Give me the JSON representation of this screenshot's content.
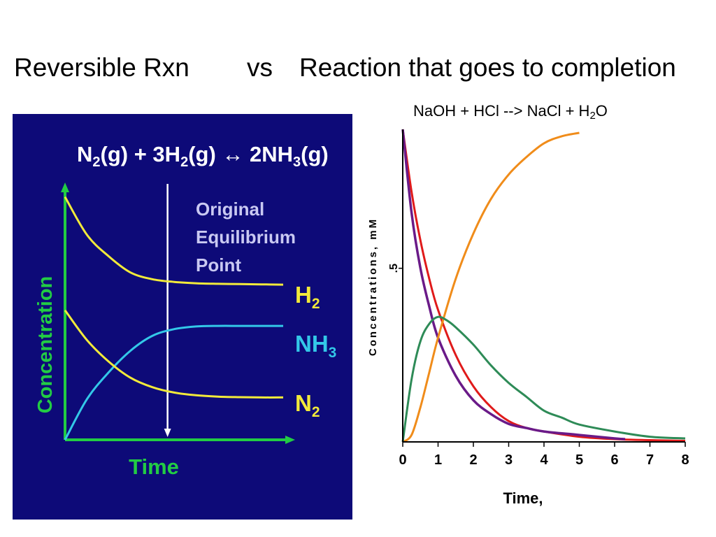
{
  "slide": {
    "title_left": "Reversible Rxn",
    "title_vs": "vs",
    "title_right": "Reaction that goes to completion"
  },
  "left_panel": {
    "equation_parts": [
      "N",
      "2",
      "(g)  +  3H",
      "2",
      "(g)  ↔  2NH",
      "3",
      "(g)"
    ],
    "colors": {
      "background": "#0d0a78",
      "h2": "#f2ea3a",
      "n2": "#f2ea3a",
      "nh3": "#33c8e8",
      "axes": "#22cc44",
      "marker": "#ffffff",
      "annotation": "#c9c9f2"
    }
  },
  "right_panel": {
    "equation_parts": [
      "NaOH + HCl -->  NaCl + H",
      "2",
      "O"
    ],
    "colors": {
      "red": "#e01a1a",
      "purple": "#6a1a88",
      "orange": "#f08c1a",
      "green": "#2e8b57"
    }
  },
  "chart_data": [
    {
      "type": "line",
      "title": "N2(g) + 3H2(g) ↔ 2NH3(g)",
      "xlabel": "Time",
      "ylabel": "Concentration",
      "xlim": [
        0,
        10
      ],
      "ylim": [
        0,
        10
      ],
      "grid": false,
      "annotation": [
        "Original",
        "Equilibrium",
        "Point"
      ],
      "marker_x": 4.7,
      "series": [
        {
          "name": "H2",
          "label_main": "H",
          "label_sub": "2",
          "x": [
            0,
            1,
            2,
            3,
            4,
            5,
            6,
            7,
            8,
            9,
            10
          ],
          "values": [
            9.0,
            7.6,
            6.8,
            6.2,
            5.95,
            5.85,
            5.8,
            5.78,
            5.77,
            5.76,
            5.75
          ]
        },
        {
          "name": "NH3",
          "label_main": "NH",
          "label_sub": "3",
          "x": [
            0,
            1,
            2,
            3,
            4,
            5,
            6,
            7,
            8,
            9,
            10
          ],
          "values": [
            0,
            1.5,
            2.5,
            3.3,
            3.85,
            4.1,
            4.2,
            4.22,
            4.22,
            4.22,
            4.22
          ]
        },
        {
          "name": "N2",
          "label_main": "N",
          "label_sub": "2",
          "x": [
            0,
            1,
            2,
            3,
            4,
            5,
            6,
            7,
            8,
            9,
            10
          ],
          "values": [
            4.8,
            3.7,
            2.9,
            2.3,
            1.95,
            1.75,
            1.65,
            1.6,
            1.58,
            1.57,
            1.57
          ]
        }
      ]
    },
    {
      "type": "line",
      "title": "NaOH + HCl -->  NaCl + H2O",
      "xlabel": "Time,",
      "ylabel": "Concentrations, mM",
      "xlim": [
        0,
        8
      ],
      "ylim": [
        0,
        0.9
      ],
      "xticks": [
        "0",
        "1",
        "2",
        "3",
        "4",
        "5",
        "6",
        "7",
        "8"
      ],
      "yticks": [
        ".5"
      ],
      "grid": false,
      "series": [
        {
          "name": "red",
          "x": [
            0,
            0.25,
            0.5,
            0.75,
            1,
            1.5,
            2,
            2.5,
            3,
            3.5,
            4,
            5,
            6,
            7,
            8
          ],
          "values": [
            0.9,
            0.72,
            0.58,
            0.47,
            0.38,
            0.25,
            0.16,
            0.1,
            0.06,
            0.04,
            0.03,
            0.015,
            0.008,
            0.005,
            0.003
          ]
        },
        {
          "name": "purple",
          "x": [
            0,
            0.25,
            0.5,
            0.75,
            1,
            1.5,
            2,
            2.5,
            3,
            3.5,
            4,
            5,
            6,
            6.3
          ],
          "values": [
            0.9,
            0.66,
            0.5,
            0.39,
            0.3,
            0.19,
            0.12,
            0.08,
            0.052,
            0.04,
            0.03,
            0.02,
            0.01,
            0.008
          ]
        },
        {
          "name": "orange",
          "x": [
            0,
            0.25,
            0.5,
            0.75,
            1,
            1.5,
            2,
            2.5,
            3,
            3.5,
            4,
            4.5,
            5
          ],
          "values": [
            0,
            0.02,
            0.1,
            0.2,
            0.3,
            0.47,
            0.6,
            0.7,
            0.77,
            0.82,
            0.86,
            0.88,
            0.89
          ]
        },
        {
          "name": "green",
          "x": [
            0,
            0.25,
            0.5,
            0.75,
            1,
            1.25,
            1.5,
            2,
            2.5,
            3,
            3.5,
            4,
            4.5,
            5,
            6,
            7,
            8
          ],
          "values": [
            0,
            0.18,
            0.29,
            0.34,
            0.36,
            0.35,
            0.33,
            0.28,
            0.22,
            0.17,
            0.13,
            0.09,
            0.07,
            0.05,
            0.03,
            0.015,
            0.01
          ]
        }
      ]
    }
  ]
}
